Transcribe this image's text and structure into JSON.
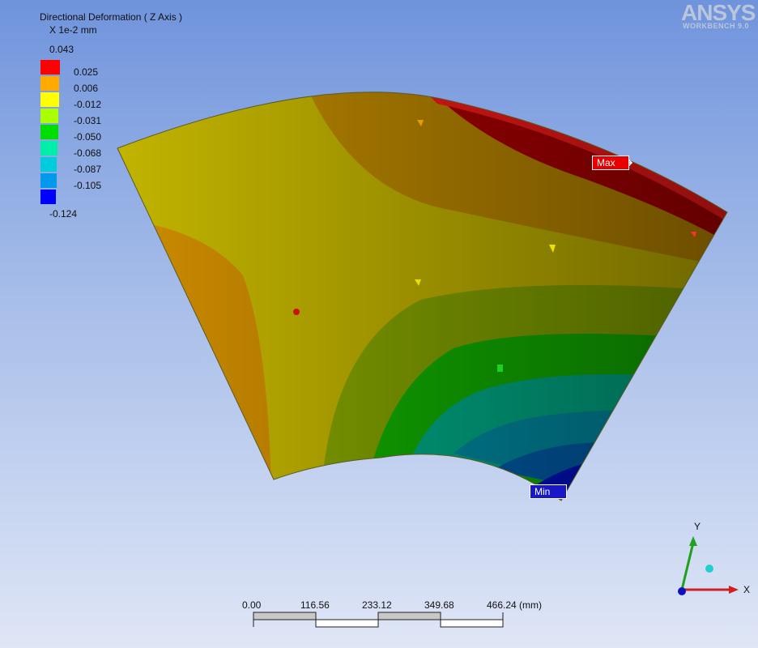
{
  "legend": {
    "title": "Directional Deformation ( Z Axis )",
    "units": "X 1e-2 mm",
    "max_value": "0.043",
    "min_value": "-0.124",
    "bands": [
      {
        "label": "0.025",
        "color": "#ff0000"
      },
      {
        "label": "0.006",
        "color": "#ffaa00"
      },
      {
        "label": "-0.012",
        "color": "#ffff00"
      },
      {
        "label": "-0.031",
        "color": "#aaff00"
      },
      {
        "label": "-0.050",
        "color": "#00dd00"
      },
      {
        "label": "-0.068",
        "color": "#00eeaa"
      },
      {
        "label": "-0.087",
        "color": "#00ccdd"
      },
      {
        "label": "-0.105",
        "color": "#0099ee"
      },
      {
        "label": "",
        "color": "#0000ff"
      }
    ]
  },
  "logo": {
    "name": "ANSYS",
    "sub": "WORKBENCH 9.0"
  },
  "probes": {
    "max_label": "Max",
    "min_label": "Min"
  },
  "triad": {
    "x_label": "X",
    "y_label": "Y"
  },
  "scale": {
    "ticks": [
      "0.00",
      "116.56",
      "233.12",
      "349.68",
      "466.24 (mm)"
    ]
  }
}
